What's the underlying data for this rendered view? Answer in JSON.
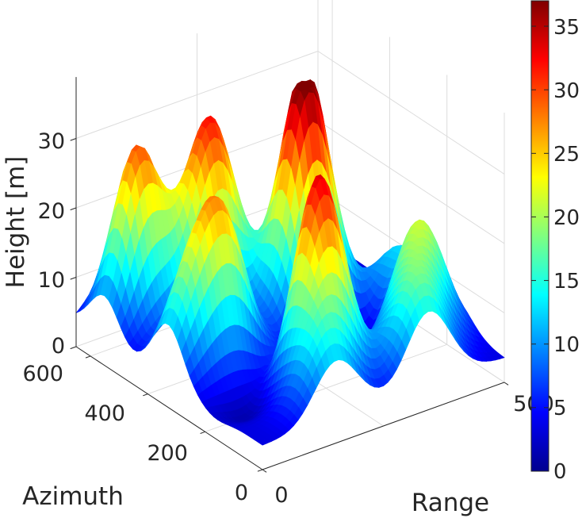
{
  "chart_data": {
    "type": "surface",
    "colormap": "jet",
    "xlabel": "Range",
    "ylabel": "Azimuth",
    "zlabel": "Height [m]",
    "x_ticks": [
      "0",
      "500"
    ],
    "y_ticks": [
      "0",
      "200",
      "400",
      "600"
    ],
    "z_ticks": [
      "0",
      "10",
      "20",
      "30"
    ],
    "xlim": [
      0,
      500
    ],
    "ylim": [
      0,
      650
    ],
    "zlim": [
      0,
      37
    ],
    "clim": [
      0,
      37
    ],
    "colorbar": {
      "ticks": [
        "0",
        "5",
        "10",
        "15",
        "20",
        "25",
        "30",
        "35"
      ],
      "values": [
        0,
        5,
        10,
        15,
        20,
        25,
        30,
        35
      ]
    },
    "grid": true,
    "peaks": [
      {
        "x": 200,
        "y": 140,
        "height": 33
      },
      {
        "x": 300,
        "y": 360,
        "height": 31
      },
      {
        "x": 230,
        "y": 560,
        "height": 20
      },
      {
        "x": 340,
        "y": 420,
        "height": 23
      },
      {
        "x": 110,
        "y": 330,
        "height": 24
      },
      {
        "x": 70,
        "y": 560,
        "height": 30
      },
      {
        "x": 180,
        "y": 490,
        "height": 27
      },
      {
        "x": 430,
        "y": 170,
        "height": 17
      },
      {
        "x": 40,
        "y": 330,
        "height": 15
      },
      {
        "x": 340,
        "y": 30,
        "height": 15
      },
      {
        "x": 380,
        "y": 110,
        "height": 14
      },
      {
        "x": 460,
        "y": 300,
        "height": 12
      },
      {
        "x": 150,
        "y": 40,
        "height": 14
      }
    ],
    "valleys": [
      {
        "x": 150,
        "y": 220,
        "depth": 11
      },
      {
        "x": 350,
        "y": 250,
        "depth": 10
      },
      {
        "x": 60,
        "y": 160,
        "depth": 6
      },
      {
        "x": 420,
        "y": 420,
        "depth": 5
      },
      {
        "x": 30,
        "y": 590,
        "depth": 5
      }
    ]
  }
}
